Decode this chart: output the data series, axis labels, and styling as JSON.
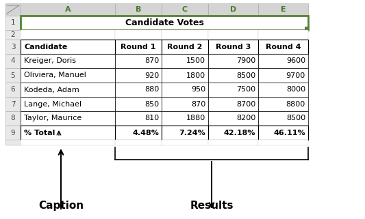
{
  "title": "Candidate Votes",
  "col_headers": [
    "Candidate",
    "Round 1",
    "Round 2",
    "Round 3",
    "Round 4"
  ],
  "col_letters": [
    "A",
    "B",
    "C",
    "D",
    "E"
  ],
  "rows": [
    [
      "Kreiger, Doris",
      "870",
      "1500",
      "7900",
      "9600"
    ],
    [
      "Oliviera, Manuel",
      "920",
      "1800",
      "8500",
      "9700"
    ],
    [
      "Kodeda, Adam",
      "880",
      "950",
      "7500",
      "8000"
    ],
    [
      "Lange, Michael",
      "850",
      "870",
      "8700",
      "8800"
    ],
    [
      "Taylor, Maurice",
      "810",
      "1880",
      "8200",
      "8500"
    ]
  ],
  "total_row": [
    "% Total",
    "4.48%",
    "7.24%",
    "42.18%",
    "46.11%"
  ],
  "annotation_caption": "Caption",
  "annotation_results": "Results",
  "header_bg": "#70AD47",
  "header_text": "#FFFFFF",
  "title_border_color": "#548235",
  "row_num_bg": "#E0E0E0",
  "col_header_bg": "#D9D9D9"
}
